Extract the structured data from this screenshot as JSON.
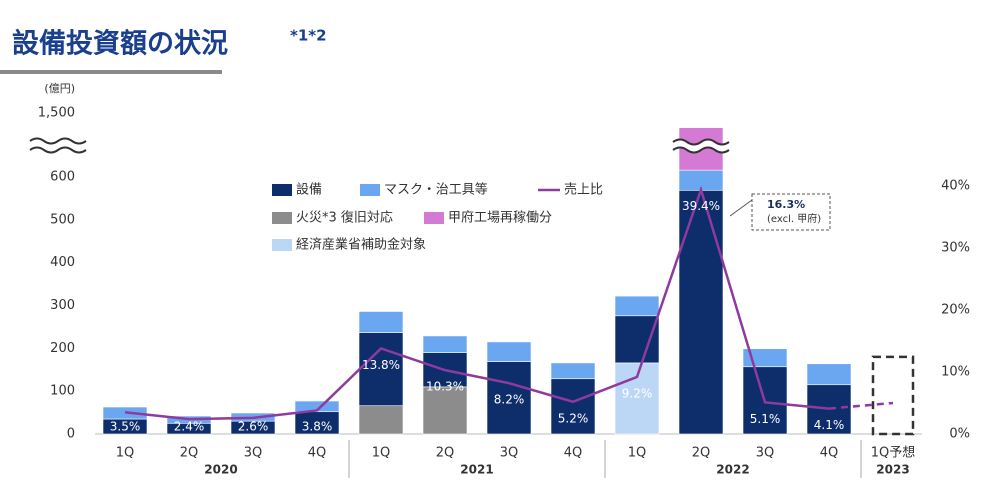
{
  "chart_data": {
    "type": "stacked_bar_line",
    "title": "設備投資額の状況",
    "title_note": "*1*2",
    "y_unit": "(億円)",
    "categories": [
      "1Q",
      "2Q",
      "3Q",
      "4Q",
      "1Q",
      "2Q",
      "3Q",
      "4Q",
      "1Q",
      "2Q",
      "3Q",
      "4Q",
      "1Q予想"
    ],
    "groups": [
      {
        "label": "2020",
        "count": 4
      },
      {
        "label": "2021",
        "count": 4
      },
      {
        "label": "2022",
        "count": 4
      },
      {
        "label": "2023",
        "count": 1
      }
    ],
    "series": [
      {
        "name": "火災*3 復旧対応",
        "color": "#8c8c8c",
        "values": [
          null,
          null,
          null,
          null,
          66,
          110,
          null,
          null,
          null,
          null,
          null,
          null,
          null
        ]
      },
      {
        "name": "経済産業省補助金対象",
        "color": "#bcd7f5",
        "values": [
          null,
          null,
          null,
          null,
          null,
          null,
          null,
          null,
          166,
          null,
          null,
          null,
          null
        ]
      },
      {
        "name": "設備",
        "color": "#0d2d6b",
        "values": [
          35,
          25,
          30,
          52,
          171,
          80,
          169,
          129,
          110,
          569,
          157,
          115,
          null
        ]
      },
      {
        "name": "マスク・治工具等",
        "color": "#6aa7f0",
        "values": [
          28,
          17,
          19,
          25,
          49,
          39,
          46,
          37,
          46,
          47,
          42,
          49,
          null
        ]
      },
      {
        "name": "甲府工場再稼働分",
        "color": "#d47ad4",
        "values": [
          null,
          null,
          null,
          null,
          null,
          null,
          null,
          null,
          null,
          800,
          null,
          null,
          null
        ]
      }
    ],
    "forecast_values": [
      null,
      null,
      null,
      null,
      null,
      null,
      null,
      null,
      null,
      null,
      null,
      null,
      180
    ],
    "line": {
      "name": "売上比",
      "color": "#8e3a9e",
      "axis": "y2",
      "values": [
        3.5,
        2.4,
        2.6,
        3.8,
        13.8,
        10.3,
        8.2,
        5.2,
        9.2,
        39.4,
        5.1,
        4.1,
        5.0
      ],
      "value_labels": [
        "3.5%",
        "2.4%",
        "2.6%",
        "3.8%",
        "13.8%",
        "10.3%",
        "8.2%",
        "5.2%",
        "9.2%",
        "39.4%",
        "5.1%",
        "4.1%",
        null
      ]
    },
    "ylim": [
      0,
      1500
    ],
    "y_break": [
      650,
      1300
    ],
    "yticks": [
      0,
      100,
      200,
      300,
      400,
      500,
      600,
      {
        "value": 1500,
        "label": "1,500"
      }
    ],
    "y2lim": [
      0,
      40
    ],
    "y2ticks": [
      {
        "value": 0,
        "label": "0%"
      },
      {
        "value": 10,
        "label": "10%"
      },
      {
        "value": 20,
        "label": "20%"
      },
      {
        "value": 30,
        "label": "30%"
      },
      {
        "value": 40,
        "label": "40%"
      }
    ],
    "annotation": {
      "value": "16.3%",
      "note": "(excl. 甲府)"
    }
  }
}
